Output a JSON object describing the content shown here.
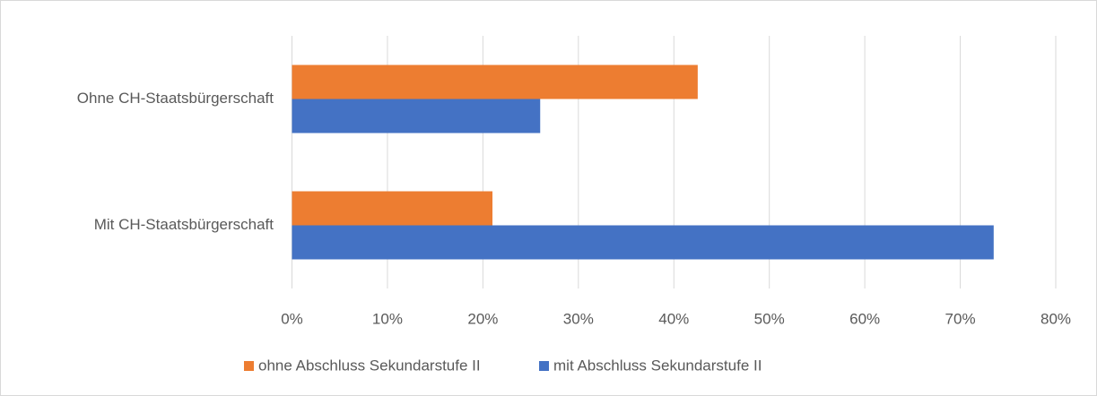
{
  "chart_data": {
    "type": "bar",
    "orientation": "horizontal",
    "categories": [
      "Ohne CH-Staatsbürgerschaft",
      "Mit CH-Staatsbürgerschaft"
    ],
    "series": [
      {
        "name": "ohne Abschluss Sekundarstufe II",
        "color": "#ED7D31",
        "values": [
          42.5,
          21
        ]
      },
      {
        "name": "mit Abschluss Sekundarstufe II",
        "color": "#4472C4",
        "values": [
          26,
          73.5
        ]
      }
    ],
    "xlim": [
      0,
      80
    ],
    "xticks": [
      {
        "value": 0,
        "label": "0%"
      },
      {
        "value": 10,
        "label": "10%"
      },
      {
        "value": 20,
        "label": "20%"
      },
      {
        "value": 30,
        "label": "30%"
      },
      {
        "value": 40,
        "label": "40%"
      },
      {
        "value": 50,
        "label": "50%"
      },
      {
        "value": 60,
        "label": "60%"
      },
      {
        "value": 70,
        "label": "70%"
      },
      {
        "value": 80,
        "label": "80%"
      }
    ],
    "grid": true,
    "legend": "bottom"
  }
}
